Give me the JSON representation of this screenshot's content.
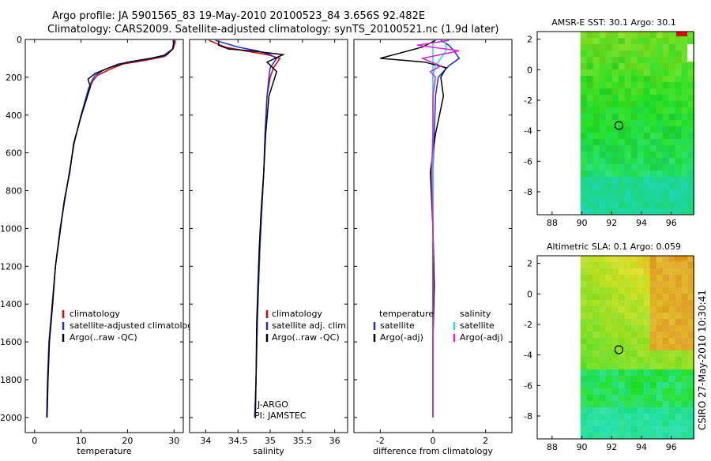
{
  "header": {
    "line1": "Argo profile: JA 5901565_83 19-May-2010 20100523_84 3.656S 92.482E",
    "line2": "Climatology: CARS2009. Satellite-adjusted climatology: synTS_20100521.nc (1.9d later)"
  },
  "credit": "CSIRO 27-May-2010 10:30:41",
  "colors": {
    "clim": "#e00000",
    "sat": "#1a2fe0",
    "argo": "#000000",
    "sat_s": "#22d8e8",
    "argo_s": "#e020d8"
  },
  "chart_data": [
    {
      "type": "line",
      "name": "temperature",
      "xlabel": "temperature",
      "xlim": [
        -2,
        32
      ],
      "ylim": [
        0,
        2080
      ],
      "yreversed": true,
      "xticks": [
        0,
        10,
        20,
        30
      ],
      "yticks": [
        0,
        200,
        400,
        600,
        800,
        1000,
        1200,
        1400,
        1600,
        1800,
        2000
      ],
      "legend": [
        "climatology",
        "satellite-adjusted climatology",
        "Argo(..raw -QC)"
      ],
      "series": [
        {
          "name": "climatology",
          "color": "clim",
          "x": [
            30.3,
            30.2,
            29.8,
            28,
            24,
            19,
            16,
            13.5,
            12.5,
            11.8,
            10,
            8.5,
            7.5,
            6.5,
            5.5,
            4.5,
            3.8,
            3.1,
            2.8,
            2.6
          ],
          "y": [
            5,
            20,
            50,
            90,
            110,
            130,
            160,
            190,
            220,
            260,
            400,
            550,
            700,
            850,
            1000,
            1200,
            1400,
            1600,
            1800,
            2000
          ]
        },
        {
          "name": "satellite-adjusted climatology",
          "color": "sat",
          "x": [
            30.1,
            30,
            29.7,
            27.5,
            23,
            18,
            15,
            13,
            12.3,
            11.6,
            10,
            8.5,
            7.5,
            6.5,
            5.5,
            4.5,
            3.8,
            3.1,
            2.8,
            2.6
          ],
          "y": [
            5,
            20,
            50,
            90,
            110,
            130,
            160,
            190,
            220,
            260,
            400,
            550,
            700,
            850,
            1000,
            1200,
            1400,
            1600,
            1800,
            2000
          ]
        },
        {
          "name": "Argo(..raw -QC)",
          "color": "argo",
          "x": [
            29.8,
            29.9,
            29.7,
            28.5,
            25,
            20,
            16,
            13,
            11.5,
            12,
            10.1,
            8.4,
            7.6,
            6.4,
            5.6,
            4.5,
            3.9,
            3.2,
            2.9,
            2.7
          ],
          "y": [
            5,
            20,
            50,
            80,
            100,
            120,
            150,
            180,
            210,
            250,
            400,
            550,
            700,
            850,
            1000,
            1200,
            1400,
            1600,
            1800,
            2000
          ]
        }
      ]
    },
    {
      "type": "line",
      "name": "salinity",
      "xlabel": "salinity",
      "xlim": [
        33.75,
        36.2
      ],
      "ylim": [
        0,
        2080
      ],
      "yreversed": true,
      "xticks": [
        34,
        34.5,
        35,
        35.5,
        36
      ],
      "legend": [
        "climatology",
        "satellite adj. clim.",
        "Argo(..raw -QC)"
      ],
      "annotation": [
        "J-ARGO",
        "PI: JAMSTEC"
      ],
      "series": [
        {
          "name": "climatology",
          "color": "clim",
          "x": [
            34.05,
            34.3,
            34.6,
            34.95,
            35.15,
            35.05,
            35.0,
            34.95,
            34.92,
            34.9,
            34.87,
            34.84,
            34.82,
            34.8,
            34.78,
            34.76
          ],
          "y": [
            5,
            40,
            60,
            80,
            100,
            150,
            200,
            300,
            500,
            700,
            900,
            1100,
            1300,
            1500,
            1800,
            2000
          ]
        },
        {
          "name": "satellite adj. clim.",
          "color": "sat",
          "x": [
            34.15,
            34.5,
            34.8,
            35.0,
            35.1,
            35.0,
            34.98,
            34.95,
            34.92,
            34.9,
            34.87,
            34.84,
            34.82,
            34.8,
            34.78,
            34.76
          ],
          "y": [
            5,
            40,
            60,
            80,
            100,
            150,
            200,
            300,
            500,
            700,
            900,
            1100,
            1300,
            1500,
            1800,
            2000
          ]
        },
        {
          "name": "Argo(..raw -QC)",
          "color": "argo",
          "x": [
            34.2,
            34.2,
            34.35,
            34.7,
            35.2,
            34.95,
            35.1,
            34.98,
            34.93,
            34.9,
            34.86,
            34.83,
            34.81,
            34.79,
            34.78,
            34.77
          ],
          "y": [
            5,
            30,
            50,
            60,
            80,
            120,
            170,
            300,
            500,
            700,
            900,
            1100,
            1300,
            1500,
            1800,
            2000
          ]
        }
      ]
    },
    {
      "type": "line",
      "name": "difference",
      "xlabel": "difference from climatology",
      "xlim": [
        -3,
        3
      ],
      "ylim": [
        0,
        2080
      ],
      "yreversed": true,
      "xticks": [
        -2,
        0,
        2
      ],
      "legend_left_head": "temperature",
      "legend_right_head": "salinity",
      "legend_left": [
        "satellite",
        "Argo(-adj)"
      ],
      "legend_right": [
        "satellite",
        "Argo(-adj)"
      ],
      "series": [
        {
          "name": "temperature satellite",
          "color": "sat",
          "x": [
            0.3,
            0.6,
            0.8,
            1.0,
            0.6,
            0.4,
            0.2,
            0.1,
            0.05,
            0.0,
            0.0,
            0.0,
            0.0,
            0.0,
            0.0
          ],
          "y": [
            5,
            30,
            60,
            100,
            140,
            170,
            200,
            300,
            500,
            700,
            1000,
            1300,
            1600,
            1800,
            2000
          ]
        },
        {
          "name": "temperature Argo(-adj)",
          "color": "argo",
          "x": [
            0.1,
            -0.4,
            -1.2,
            -2.0,
            -0.3,
            0.5,
            0.3,
            0.4,
            0.1,
            -0.1,
            0.0,
            0.05,
            0.0,
            0.0,
            0.0
          ],
          "y": [
            5,
            40,
            70,
            100,
            120,
            150,
            200,
            300,
            500,
            700,
            1000,
            1300,
            1600,
            1800,
            2000
          ]
        },
        {
          "name": "salinity satellite",
          "color": "sat_s",
          "x": [
            0.4,
            0.5,
            0.5,
            0.3,
            0.1,
            0.05,
            0.0,
            0.0,
            0.0,
            0.0,
            0.0,
            0.0,
            0.0,
            0.0,
            0.0
          ],
          "y": [
            5,
            30,
            60,
            100,
            140,
            170,
            200,
            300,
            500,
            700,
            1000,
            1300,
            1600,
            1800,
            2000
          ]
        },
        {
          "name": "salinity Argo(-adj)",
          "color": "argo_s",
          "x": [
            0.6,
            -0.6,
            1.0,
            -0.4,
            0.3,
            -0.1,
            0.1,
            0.0,
            0.0,
            -0.05,
            0.0,
            0.0,
            0.0,
            0.0,
            0.0
          ],
          "y": [
            5,
            30,
            60,
            100,
            140,
            170,
            200,
            300,
            500,
            700,
            1000,
            1300,
            1600,
            1800,
            2000
          ]
        }
      ]
    },
    {
      "type": "heatmap",
      "name": "sst_map",
      "title": "AMSR-E SST: 30.1  Argo: 30.1",
      "xlim": [
        87,
        97.5
      ],
      "ylim": [
        -9.5,
        2.5
      ],
      "xticks": [
        88,
        90,
        92,
        94,
        96
      ],
      "yticks": [
        2,
        0,
        -2,
        -4,
        -6,
        -8
      ],
      "data_xlim": [
        89.9,
        97.5
      ],
      "argo_pos": [
        92.482,
        -3.656
      ]
    },
    {
      "type": "heatmap",
      "name": "sla_map",
      "title": "Altimetric SLA: 0.1  Argo: 0.059",
      "xlim": [
        87,
        97.5
      ],
      "ylim": [
        -9.5,
        2.5
      ],
      "xticks": [
        88,
        90,
        92,
        94,
        96
      ],
      "yticks": [
        2,
        0,
        -2,
        -4,
        -6,
        -8
      ],
      "data_xlim": [
        89.9,
        97.5
      ],
      "argo_pos": [
        92.482,
        -3.656
      ]
    }
  ]
}
